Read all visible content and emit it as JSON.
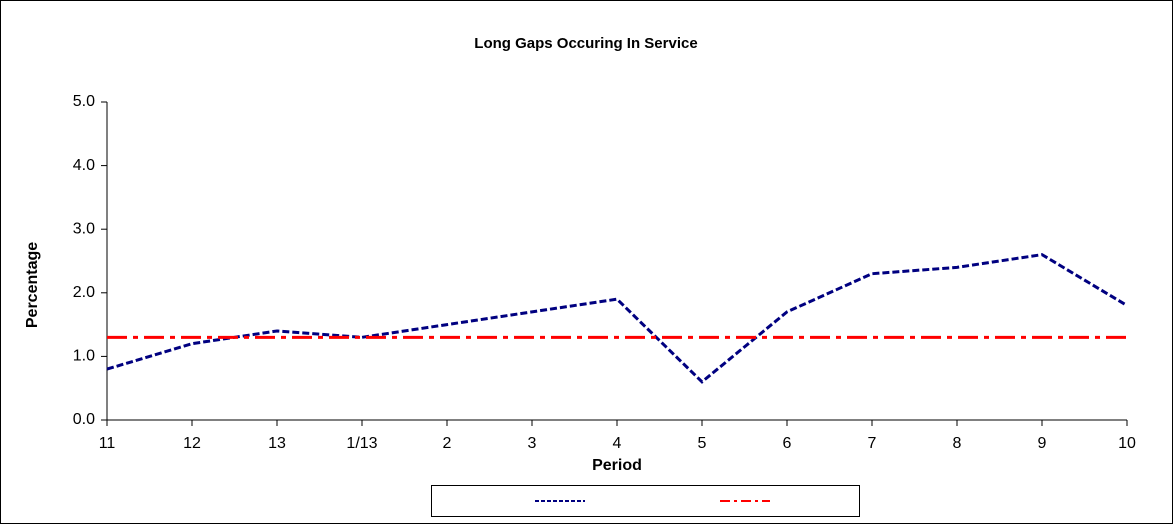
{
  "chart_data": {
    "type": "line",
    "title": "Long Gaps Occuring In Service",
    "x_label": "Period",
    "y_label": "Percentage",
    "categories": [
      "11",
      "12",
      "13",
      "1/13",
      "2",
      "3",
      "4",
      "5",
      "6",
      "7",
      "8",
      "9",
      "10"
    ],
    "series": [
      {
        "color": "#000080",
        "values": [
          0.8,
          1.2,
          1.4,
          1.3,
          1.5,
          1.7,
          1.9,
          0.6,
          1.7,
          2.3,
          2.4,
          2.6,
          1.8
        ]
      },
      {
        "color": "#ff0000",
        "values": [
          1.3,
          1.3,
          1.3,
          1.3,
          1.3,
          1.3,
          1.3,
          1.3,
          1.3,
          1.3,
          1.3,
          1.3,
          1.3
        ]
      }
    ],
    "ylim": [
      0,
      5
    ],
    "yticks": [
      {
        "value": 0,
        "label": "0.0"
      },
      {
        "value": 1,
        "label": "1.0"
      },
      {
        "value": 2,
        "label": "2.0"
      },
      {
        "value": 3,
        "label": "3.0"
      },
      {
        "value": 4,
        "label": "4.0"
      },
      {
        "value": 5,
        "label": "5.0"
      }
    ],
    "grid": false
  }
}
